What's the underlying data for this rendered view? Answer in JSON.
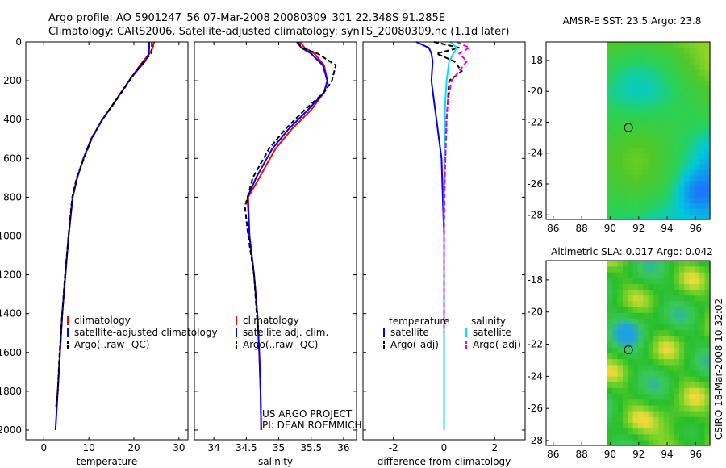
{
  "header": {
    "line1": "Argo profile: AO 5901247_56 07-Mar-2008 20080309_301 22.348S 91.285E",
    "line2": "Climatology: CARS2006. Satellite-adjusted climatology: synTS_20080309.nc (1.1d later)"
  },
  "side_label": "CSIRO 18-Mar-2008 10:32:02",
  "project_credit": {
    "line1": "US ARGO PROJECT",
    "line2": "PI: DEAN ROEMMICH"
  },
  "chart_data": [
    {
      "type": "line",
      "id": "temperature",
      "xlabel": "temperature",
      "ylabel": "",
      "xlim": [
        -4,
        32
      ],
      "ylim": [
        2050,
        0
      ],
      "y_reversed": true,
      "xticks": [
        0,
        10,
        20,
        30
      ],
      "yticks": [
        0,
        200,
        400,
        600,
        800,
        1000,
        1200,
        1400,
        1600,
        1800,
        2000
      ],
      "legend": [
        "climatology",
        "satellite-adjusted climatology",
        "Argo(..raw -QC)"
      ],
      "series": [
        {
          "name": "climatology",
          "color": "#ff0000",
          "dash": false,
          "x": [
            24.5,
            24.2,
            23.5,
            22,
            19.5,
            16,
            13,
            10.5,
            8.8,
            7.4,
            6.4,
            5.5,
            4.8,
            4.1,
            3.6,
            3.1,
            2.7
          ],
          "y": [
            0,
            30,
            60,
            100,
            180,
            300,
            400,
            500,
            600,
            700,
            800,
            1000,
            1200,
            1400,
            1600,
            1800,
            1880
          ]
        },
        {
          "name": "satellite-adjusted climatology",
          "color": "#0000ff",
          "dash": false,
          "x": [
            23.4,
            23.4,
            23.3,
            22.5,
            19.5,
            16,
            13,
            10.5,
            8.8,
            7.4,
            6.4,
            5.5,
            4.8,
            4.1,
            3.6,
            3.1,
            2.6
          ],
          "y": [
            0,
            30,
            60,
            100,
            180,
            300,
            400,
            500,
            600,
            700,
            800,
            1000,
            1200,
            1400,
            1600,
            1800,
            2000
          ]
        },
        {
          "name": "Argo(..raw -QC)",
          "color": "#000000",
          "dash": true,
          "x": [
            24.0,
            24.0,
            23.9,
            22.2,
            19.6,
            16.1,
            13,
            10.6,
            8.9,
            7.3,
            6.3,
            5.5,
            4.7,
            4.1,
            3.5,
            3.1,
            2.8
          ],
          "y": [
            0,
            30,
            60,
            100,
            180,
            300,
            400,
            500,
            600,
            700,
            800,
            1000,
            1200,
            1400,
            1600,
            1800,
            1880
          ]
        }
      ]
    },
    {
      "type": "line",
      "id": "salinity",
      "xlabel": "salinity",
      "ylabel": "",
      "xlim": [
        33.7,
        36.2
      ],
      "ylim": [
        2050,
        0
      ],
      "y_reversed": true,
      "xticks": [
        34,
        34.5,
        35,
        35.5,
        36
      ],
      "legend": [
        "climatology",
        "satellite adj. clim.",
        "Argo(..raw -QC)"
      ],
      "series": [
        {
          "name": "climatology",
          "color": "#ff0000",
          "dash": false,
          "x": [
            35.33,
            35.4,
            35.55,
            35.7,
            35.75,
            35.7,
            35.5,
            35.2,
            34.95,
            34.7,
            34.53,
            34.55,
            34.62,
            34.67,
            34.7,
            34.72,
            34.73
          ],
          "y": [
            0,
            30,
            60,
            120,
            200,
            260,
            350,
            450,
            550,
            700,
            800,
            1000,
            1200,
            1400,
            1600,
            1800,
            2000
          ]
        },
        {
          "name": "satellite adj. clim.",
          "color": "#0000ff",
          "dash": false,
          "x": [
            35.28,
            35.35,
            35.5,
            35.68,
            35.75,
            35.7,
            35.45,
            35.15,
            34.9,
            34.65,
            34.52,
            34.55,
            34.62,
            34.67,
            34.7,
            34.72,
            34.73
          ],
          "y": [
            0,
            30,
            60,
            120,
            200,
            260,
            350,
            450,
            550,
            700,
            800,
            1000,
            1200,
            1400,
            1600,
            1800,
            2000
          ]
        },
        {
          "name": "Argo(..raw -QC)",
          "color": "#000000",
          "dash": true,
          "x": [
            35.3,
            35.35,
            35.6,
            35.88,
            35.82,
            35.7,
            35.4,
            35.1,
            34.85,
            34.6,
            34.48,
            34.53,
            34.62,
            34.66,
            34.69
          ],
          "y": [
            0,
            30,
            60,
            120,
            200,
            260,
            350,
            450,
            550,
            700,
            850,
            1000,
            1200,
            1400,
            1500
          ]
        }
      ]
    },
    {
      "type": "line",
      "id": "difference",
      "xlabel": "difference from climatology",
      "ylabel": "",
      "xlim": [
        -3.2,
        3.2
      ],
      "ylim": [
        2050,
        0
      ],
      "y_reversed": true,
      "xticks": [
        -2,
        0,
        2
      ],
      "legend_left_title": "temperature",
      "legend_right_title": "salinity",
      "legend": [
        "satellite",
        "Argo(-adj)",
        "satellite",
        "Argo(-adj)"
      ],
      "series": [
        {
          "name": "temperature satellite",
          "color": "#0000ff",
          "dash": false,
          "x": [
            -1.1,
            -0.6,
            -0.5,
            -0.45,
            -0.5,
            -0.4,
            -0.3,
            -0.2,
            -0.1,
            -0.05,
            0,
            0,
            0
          ],
          "y": [
            0,
            30,
            60,
            100,
            200,
            300,
            400,
            500,
            600,
            800,
            1000,
            1500,
            2000
          ]
        },
        {
          "name": "temperature Argo(-adj)",
          "color": "#000000",
          "dash": true,
          "x": [
            -0.4,
            0.6,
            -0.3,
            0.4,
            0.7,
            0.2,
            0.15,
            0.1,
            0.05,
            0,
            0,
            0
          ],
          "y": [
            0,
            30,
            60,
            100,
            150,
            200,
            300,
            400,
            600,
            800,
            1000,
            1500
          ]
        },
        {
          "name": "salinity satellite",
          "color": "#00e5ee",
          "dash": false,
          "x": [
            0.25,
            0.5,
            0.2,
            0.1,
            0.05,
            0.03,
            0.02,
            0.01,
            0,
            0,
            0
          ],
          "y": [
            0,
            30,
            100,
            200,
            300,
            400,
            500,
            600,
            800,
            1200,
            2000
          ]
        },
        {
          "name": "salinity Argo(-adj)",
          "color": "#ee00ee",
          "dash": true,
          "x": [
            0.5,
            1.0,
            0.6,
            0.9,
            0.6,
            0.3,
            0.15,
            0.1,
            0.05,
            0.02,
            0,
            0
          ],
          "y": [
            0,
            30,
            60,
            100,
            150,
            200,
            300,
            400,
            600,
            800,
            1000,
            1500
          ]
        }
      ]
    },
    {
      "type": "heatmap",
      "id": "sst-map",
      "title": "AMSR-E SST: 23.5 Argo: 23.8",
      "xlim": [
        85.5,
        97
      ],
      "ylim": [
        -28.3,
        -16.8
      ],
      "xticks": [
        86,
        88,
        90,
        92,
        94,
        96
      ],
      "yticks": [
        -18,
        -20,
        -22,
        -24,
        -26,
        -28
      ],
      "argo_position": {
        "lon": 91.285,
        "lat": -22.348
      },
      "data_lon_range": [
        89.8,
        97
      ]
    },
    {
      "type": "heatmap",
      "id": "sla-map",
      "title": "Altimetric SLA: 0.017 Argo: 0.042",
      "xlim": [
        85.5,
        97
      ],
      "ylim": [
        -28.3,
        -16.8
      ],
      "xticks": [
        86,
        88,
        90,
        92,
        94,
        96
      ],
      "yticks": [
        -18,
        -20,
        -22,
        -24,
        -26,
        -28
      ],
      "argo_position": {
        "lon": 91.285,
        "lat": -22.348
      },
      "data_lon_range": [
        89.8,
        97
      ]
    }
  ]
}
